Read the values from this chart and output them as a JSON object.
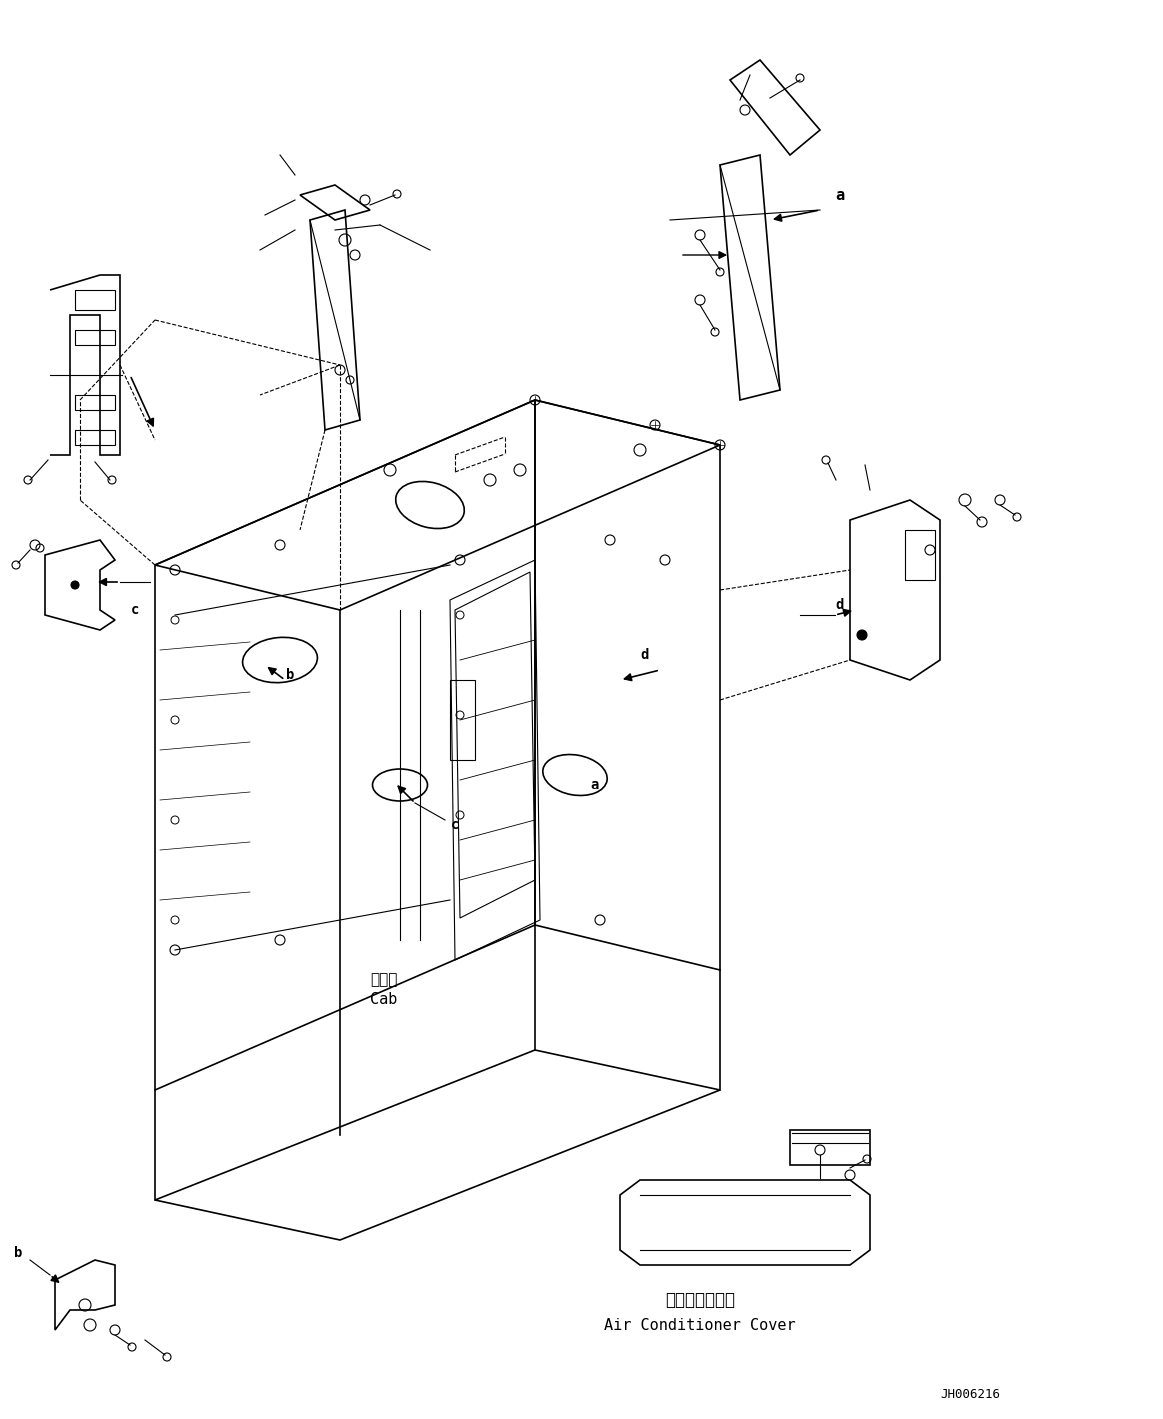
{
  "bg_color": "#ffffff",
  "line_color": "#000000",
  "fig_width": 11.63,
  "fig_height": 14.19,
  "dpi": 100,
  "labels": {
    "cab_japanese": "キャブ",
    "cab_english": "Cab",
    "ac_cover_japanese": "エアコンカバー",
    "ac_cover_english": "Air Conditioner Cover",
    "part_id": "JH006216",
    "label_a1": "a",
    "label_b1": "b",
    "label_c1": "c",
    "label_d1": "d",
    "label_a2": "a",
    "label_b2": "b",
    "label_c2": "c",
    "label_d2": "d"
  }
}
